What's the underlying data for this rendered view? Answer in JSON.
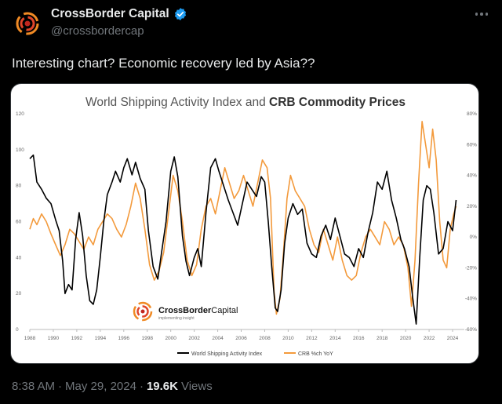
{
  "tweet": {
    "display_name": "CrossBorder Capital",
    "handle": "@crossbordercap",
    "text": "Interesting chart? Economic recovery led by Asia??",
    "time": "8:38 AM",
    "separator": "·",
    "date": "May 29, 2024",
    "views_count": "19.6K",
    "views_label": "Views",
    "verified_color": "#1d9bf0"
  },
  "icons": [
    "avatar-logo-icon",
    "verified-badge-icon",
    "more-options-icon"
  ],
  "chart_data": {
    "type": "line",
    "title_prefix": "World Shipping Activity Index and ",
    "title_bold": "CRB Commodity Prices",
    "logo_text_bold": "CrossBorder",
    "logo_text_light": "Capital",
    "logo_tagline": "implementing insight",
    "left_ylim": [
      0,
      120
    ],
    "left_ticks": [
      "120",
      "100",
      "80",
      "60",
      "40",
      "20",
      "0"
    ],
    "right_ylim": [
      -60,
      80
    ],
    "right_ticks": [
      "80%",
      "60%",
      "40%",
      "20%",
      "0%",
      "-20%",
      "-40%",
      "-60%"
    ],
    "xlim": [
      1988,
      2025
    ],
    "x_ticks": [
      "1988",
      "1990",
      "1992",
      "1994",
      "1996",
      "1998",
      "2000",
      "2002",
      "2004",
      "2006",
      "2008",
      "2010",
      "2012",
      "2014",
      "2016",
      "2018",
      "2020",
      "2022",
      "2024"
    ],
    "series": [
      {
        "name": "World Shipping Activity Index",
        "color": "#000000",
        "axis": "left",
        "x": [
          1988.0,
          1988.3,
          1988.6,
          1989.0,
          1989.4,
          1989.8,
          1990.2,
          1990.5,
          1990.8,
          1991.0,
          1991.3,
          1991.6,
          1991.9,
          1992.2,
          1992.5,
          1992.8,
          1993.1,
          1993.4,
          1993.7,
          1994.0,
          1994.3,
          1994.6,
          1995.0,
          1995.3,
          1995.7,
          1996.0,
          1996.3,
          1996.7,
          1997.0,
          1997.4,
          1997.8,
          1998.1,
          1998.5,
          1998.9,
          1999.2,
          1999.6,
          2000.0,
          2000.3,
          2000.6,
          2001.0,
          2001.3,
          2001.6,
          2002.0,
          2002.3,
          2002.6,
          2003.0,
          2003.4,
          2003.8,
          2004.1,
          2004.5,
          2004.9,
          2005.3,
          2005.7,
          2006.1,
          2006.5,
          2006.9,
          2007.3,
          2007.7,
          2008.0,
          2008.3,
          2008.6,
          2008.9,
          2009.1,
          2009.4,
          2009.7,
          2010.0,
          2010.4,
          2010.8,
          2011.2,
          2011.6,
          2012.0,
          2012.4,
          2012.8,
          2013.2,
          2013.6,
          2014.0,
          2014.4,
          2014.8,
          2015.2,
          2015.6,
          2016.0,
          2016.4,
          2016.8,
          2017.2,
          2017.6,
          2018.0,
          2018.4,
          2018.8,
          2019.2,
          2019.6,
          2019.9,
          2020.1,
          2020.3,
          2020.6,
          2020.9,
          2021.2,
          2021.5,
          2021.8,
          2022.1,
          2022.4,
          2022.8,
          2023.2,
          2023.6,
          2024.0,
          2024.3
        ],
        "values": [
          95,
          97,
          82,
          78,
          73,
          70,
          61,
          55,
          38,
          20,
          25,
          22,
          50,
          65,
          52,
          30,
          16,
          14,
          22,
          40,
          60,
          75,
          82,
          88,
          82,
          90,
          95,
          86,
          93,
          84,
          78,
          55,
          35,
          28,
          42,
          60,
          88,
          96,
          85,
          52,
          38,
          30,
          40,
          45,
          35,
          65,
          90,
          95,
          88,
          80,
          72,
          65,
          58,
          70,
          82,
          78,
          74,
          85,
          82,
          60,
          35,
          12,
          10,
          22,
          48,
          62,
          70,
          64,
          67,
          48,
          42,
          40,
          52,
          58,
          50,
          62,
          52,
          42,
          40,
          35,
          45,
          40,
          54,
          65,
          82,
          78,
          88,
          72,
          62,
          50,
          45,
          40,
          35,
          18,
          3,
          40,
          72,
          80,
          78,
          65,
          42,
          45,
          60,
          55,
          72
        ]
      },
      {
        "name": "CRB %ch YoY",
        "color": "#f39a3c",
        "axis": "right",
        "x": [
          1988.0,
          1988.3,
          1988.6,
          1989.0,
          1989.4,
          1989.8,
          1990.2,
          1990.6,
          1991.0,
          1991.4,
          1991.8,
          1992.2,
          1992.6,
          1993.0,
          1993.4,
          1993.8,
          1994.2,
          1994.6,
          1995.0,
          1995.4,
          1995.8,
          1996.2,
          1996.6,
          1997.0,
          1997.4,
          1997.8,
          1998.2,
          1998.6,
          1999.0,
          1999.4,
          1999.8,
          2000.2,
          2000.6,
          2001.0,
          2001.4,
          2001.8,
          2002.2,
          2002.6,
          2003.0,
          2003.4,
          2003.8,
          2004.2,
          2004.6,
          2005.0,
          2005.4,
          2005.8,
          2006.2,
          2006.6,
          2007.0,
          2007.4,
          2007.8,
          2008.2,
          2008.5,
          2008.8,
          2009.0,
          2009.3,
          2009.6,
          2009.9,
          2010.2,
          2010.6,
          2011.0,
          2011.4,
          2011.8,
          2012.2,
          2012.6,
          2013.0,
          2013.4,
          2013.8,
          2014.2,
          2014.6,
          2015.0,
          2015.4,
          2015.8,
          2016.2,
          2016.6,
          2017.0,
          2017.4,
          2017.8,
          2018.2,
          2018.6,
          2019.0,
          2019.4,
          2019.8,
          2020.2,
          2020.5,
          2020.8,
          2021.1,
          2021.4,
          2021.7,
          2022.0,
          2022.3,
          2022.6,
          2022.9,
          2023.2,
          2023.5,
          2023.8,
          2024.1,
          2024.3
        ],
        "values": [
          5,
          12,
          8,
          15,
          10,
          2,
          -5,
          -12,
          -5,
          5,
          2,
          -3,
          -8,
          0,
          -5,
          5,
          10,
          15,
          12,
          5,
          0,
          8,
          20,
          35,
          25,
          5,
          -18,
          -28,
          -22,
          -10,
          15,
          40,
          30,
          10,
          -15,
          -25,
          -18,
          5,
          20,
          25,
          15,
          30,
          45,
          35,
          25,
          30,
          40,
          30,
          20,
          35,
          50,
          45,
          25,
          -35,
          -50,
          -40,
          -10,
          25,
          40,
          30,
          25,
          20,
          5,
          -5,
          -10,
          5,
          -5,
          -15,
          0,
          -15,
          -25,
          -28,
          -25,
          -10,
          0,
          5,
          0,
          -5,
          10,
          5,
          -5,
          0,
          -5,
          -20,
          -45,
          -15,
          35,
          75,
          60,
          45,
          70,
          50,
          10,
          -15,
          -20,
          5,
          15,
          20
        ]
      }
    ],
    "legend_position": "bottom-center"
  }
}
